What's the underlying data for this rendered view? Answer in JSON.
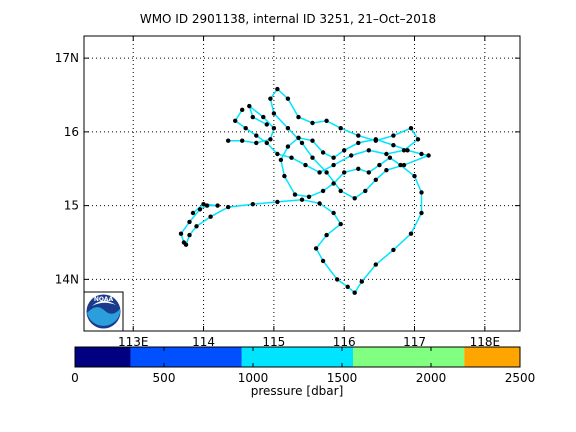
{
  "chart_data": {
    "type": "scatter",
    "title": "WMO ID 2901138, internal ID 3251, 21–Oct–2018",
    "xlim": [
      112.3,
      118.5
    ],
    "ylim": [
      13.3,
      17.3
    ],
    "x_ticks": [
      113,
      114,
      115,
      116,
      117,
      118
    ],
    "x_tick_labels": [
      "113E",
      "114",
      "115",
      "116",
      "117",
      "118E"
    ],
    "y_ticks": [
      14,
      15,
      16,
      17
    ],
    "y_tick_labels": [
      "14N",
      "15",
      "16",
      "17N"
    ],
    "grid": true,
    "logo": {
      "text": "NOAA"
    },
    "colorbar": {
      "label": "pressure [dbar]",
      "range": [
        0,
        2500
      ],
      "tick_values": [
        0,
        500,
        1000,
        1500,
        2000,
        2500
      ],
      "tick_labels": [
        "0",
        "500",
        "1000",
        "1500",
        "2000",
        "2500"
      ],
      "bins": [
        {
          "from": 0,
          "to": 312,
          "color": "#000080"
        },
        {
          "from": 312,
          "to": 937,
          "color": "#0050ff"
        },
        {
          "from": 937,
          "to": 1562,
          "color": "#00e5ff"
        },
        {
          "from": 1562,
          "to": 2187,
          "color": "#80ff80"
        },
        {
          "from": 2187,
          "to": 2500,
          "color": "#ffa500"
        }
      ]
    },
    "series": [
      {
        "color": "#00e5ff",
        "marker_color": "#000000",
        "points": [
          [
            113.75,
            14.47
          ],
          [
            113.8,
            14.6
          ],
          [
            113.9,
            14.72
          ],
          [
            114.1,
            14.85
          ],
          [
            114.35,
            14.98
          ],
          [
            114.7,
            15.02
          ],
          [
            115.05,
            15.05
          ],
          [
            115.4,
            15.08
          ],
          [
            115.65,
            15.03
          ],
          [
            115.85,
            14.9
          ],
          [
            115.95,
            14.75
          ],
          [
            115.75,
            14.6
          ],
          [
            115.6,
            14.42
          ],
          [
            115.7,
            14.25
          ],
          [
            115.9,
            14.0
          ],
          [
            116.05,
            13.9
          ],
          [
            116.15,
            13.82
          ],
          [
            116.25,
            13.97
          ],
          [
            116.45,
            14.2
          ],
          [
            116.7,
            14.4
          ],
          [
            116.95,
            14.62
          ],
          [
            117.1,
            14.9
          ],
          [
            117.1,
            15.18
          ],
          [
            117.0,
            15.4
          ],
          [
            116.8,
            15.55
          ],
          [
            116.65,
            15.65
          ],
          [
            116.5,
            15.55
          ],
          [
            116.35,
            15.45
          ],
          [
            116.2,
            15.5
          ],
          [
            116.0,
            15.45
          ],
          [
            115.85,
            15.3
          ],
          [
            115.7,
            15.2
          ],
          [
            115.5,
            15.12
          ],
          [
            115.3,
            15.15
          ],
          [
            115.15,
            15.4
          ],
          [
            115.1,
            15.62
          ],
          [
            115.2,
            15.8
          ],
          [
            115.35,
            15.92
          ],
          [
            115.55,
            15.88
          ],
          [
            115.7,
            15.72
          ],
          [
            115.85,
            15.65
          ],
          [
            116.0,
            15.75
          ],
          [
            116.2,
            15.85
          ],
          [
            116.45,
            15.9
          ],
          [
            116.7,
            15.82
          ],
          [
            116.9,
            15.75
          ],
          [
            117.1,
            15.7
          ],
          [
            117.2,
            15.68
          ],
          [
            116.85,
            15.55
          ],
          [
            116.6,
            15.48
          ],
          [
            116.45,
            15.35
          ],
          [
            116.3,
            15.2
          ],
          [
            116.15,
            15.1
          ],
          [
            115.95,
            15.2
          ],
          [
            115.75,
            15.45
          ],
          [
            115.55,
            15.65
          ],
          [
            115.4,
            15.85
          ],
          [
            115.2,
            16.05
          ],
          [
            115.0,
            16.25
          ],
          [
            114.95,
            16.45
          ],
          [
            115.05,
            16.58
          ],
          [
            115.2,
            16.45
          ],
          [
            115.35,
            16.2
          ],
          [
            115.55,
            16.12
          ],
          [
            115.75,
            16.15
          ],
          [
            115.95,
            16.05
          ],
          [
            116.2,
            15.95
          ],
          [
            116.45,
            15.88
          ],
          [
            116.7,
            15.95
          ],
          [
            116.95,
            16.05
          ],
          [
            117.05,
            15.9
          ],
          [
            116.85,
            15.75
          ],
          [
            116.6,
            15.7
          ],
          [
            116.35,
            15.75
          ],
          [
            116.1,
            15.68
          ],
          [
            115.85,
            15.55
          ],
          [
            115.65,
            15.45
          ],
          [
            115.45,
            15.55
          ],
          [
            115.25,
            15.65
          ],
          [
            115.05,
            15.7
          ],
          [
            114.9,
            15.85
          ],
          [
            114.75,
            15.95
          ],
          [
            114.6,
            16.05
          ],
          [
            114.45,
            16.15
          ],
          [
            114.55,
            16.3
          ]
        ]
      },
      {
        "color": "#00e5ff",
        "marker_color": "#000000",
        "points": [
          [
            113.72,
            14.5
          ],
          [
            113.68,
            14.62
          ],
          [
            113.8,
            14.78
          ],
          [
            113.95,
            14.95
          ],
          [
            114.05,
            15.0
          ],
          [
            114.2,
            15.0
          ],
          [
            114.0,
            15.02
          ],
          [
            113.85,
            14.9
          ]
        ]
      },
      {
        "color": "#00e5ff",
        "marker_color": "#000000",
        "points": [
          [
            114.35,
            15.88
          ],
          [
            114.55,
            15.88
          ],
          [
            114.75,
            15.85
          ],
          [
            114.95,
            15.9
          ],
          [
            115.0,
            16.05
          ],
          [
            114.85,
            16.2
          ],
          [
            114.65,
            16.35
          ],
          [
            114.7,
            16.2
          ],
          [
            114.9,
            16.1
          ]
        ]
      }
    ]
  }
}
